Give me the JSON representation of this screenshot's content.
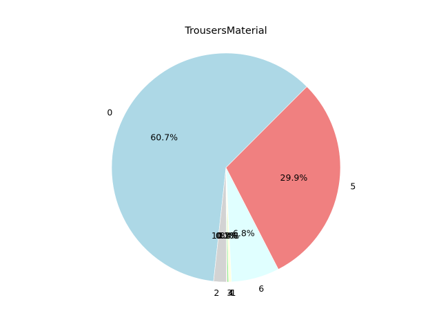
{
  "chart_data": {
    "type": "pie",
    "title": "TrousersMaterial",
    "start_angle_deg": 45,
    "direction": "counterclockwise",
    "slices": [
      {
        "label": "0",
        "value": 60.7,
        "pct_text": "60.7%",
        "color": "#add8e6"
      },
      {
        "label": "2",
        "value": 1.8,
        "pct_text": "1.8%",
        "color": "#d3d3d3"
      },
      {
        "label": "3",
        "value": 0.1,
        "pct_text": "0.1%",
        "color": "#ffb6c1"
      },
      {
        "label": "4",
        "value": 0.2,
        "pct_text": "0.2%",
        "color": "#90ee90"
      },
      {
        "label": "1",
        "value": 0.4,
        "pct_text": "0.4%",
        "color": "#ffffe0"
      },
      {
        "label": "6",
        "value": 6.8,
        "pct_text": "6.8%",
        "color": "#e0ffff"
      },
      {
        "label": "5",
        "value": 29.9,
        "pct_text": "29.9%",
        "color": "#f08080"
      }
    ]
  }
}
